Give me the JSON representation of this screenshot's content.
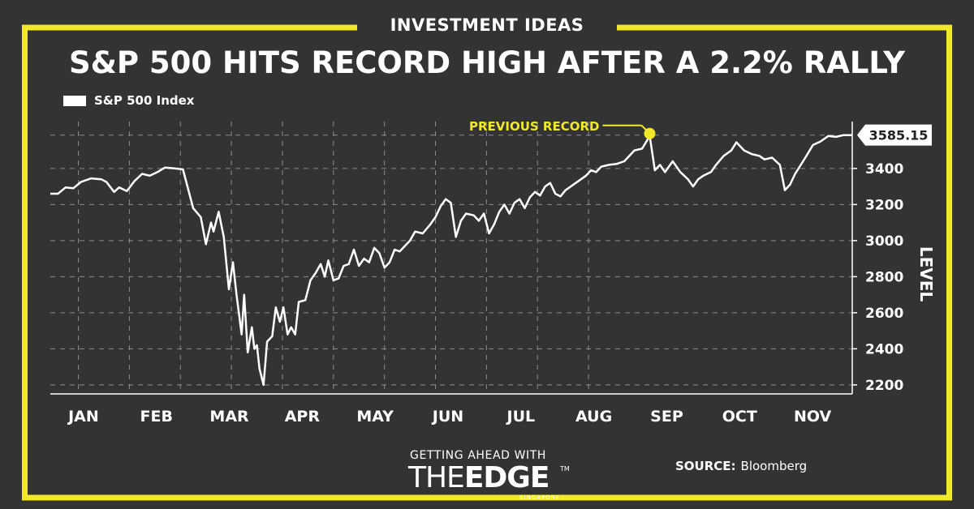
{
  "header": {
    "section_label": "INVESTMENT IDEAS",
    "headline": "S&P 500 HITS RECORD HIGH AFTER A 2.2% RALLY"
  },
  "colors": {
    "background": "#333333",
    "frame": "#f2e82a",
    "line": "#ffffff",
    "highlight": "#f2e82a",
    "grid": "#8c8c8c"
  },
  "footer": {
    "source_label": "SOURCE:",
    "source_value": "Bloomberg",
    "brand_tagline": "GETTING AHEAD WITH",
    "brand_the": "THE",
    "brand_edge": "EDGE",
    "brand_tm": "TM",
    "brand_sub": "SINGAPORE"
  },
  "chart_data": {
    "type": "line",
    "xlabel": "",
    "ylabel": "LEVEL",
    "ylim": [
      2150,
      3660
    ],
    "yticks": [
      2200,
      2400,
      2600,
      2800,
      3000,
      3200,
      3400
    ],
    "month_labels": [
      "JAN",
      "FEB",
      "MAR",
      "APR",
      "MAY",
      "JUN",
      "JUL",
      "AUG",
      "SEP",
      "OCT",
      "NOV"
    ],
    "grid": true,
    "legend_position": "top-left",
    "series": [
      {
        "name": "S&P 500 Index",
        "points": [
          [
            0.0,
            3260
          ],
          [
            0.15,
            3260
          ],
          [
            0.3,
            3295
          ],
          [
            0.45,
            3290
          ],
          [
            0.6,
            3325
          ],
          [
            0.8,
            3345
          ],
          [
            1.0,
            3340
          ],
          [
            1.1,
            3325
          ],
          [
            1.25,
            3270
          ],
          [
            1.35,
            3295
          ],
          [
            1.5,
            3275
          ],
          [
            1.65,
            3330
          ],
          [
            1.8,
            3370
          ],
          [
            1.95,
            3360
          ],
          [
            2.1,
            3380
          ],
          [
            2.25,
            3405
          ],
          [
            2.45,
            3400
          ],
          [
            2.6,
            3395
          ],
          [
            2.8,
            3180
          ],
          [
            2.95,
            3130
          ],
          [
            3.05,
            2980
          ],
          [
            3.15,
            3100
          ],
          [
            3.2,
            3050
          ],
          [
            3.3,
            3160
          ],
          [
            3.4,
            3020
          ],
          [
            3.5,
            2730
          ],
          [
            3.58,
            2880
          ],
          [
            3.65,
            2700
          ],
          [
            3.75,
            2480
          ],
          [
            3.8,
            2700
          ],
          [
            3.87,
            2380
          ],
          [
            3.95,
            2520
          ],
          [
            4.0,
            2400
          ],
          [
            4.05,
            2420
          ],
          [
            4.1,
            2290
          ],
          [
            4.18,
            2200
          ],
          [
            4.25,
            2440
          ],
          [
            4.35,
            2470
          ],
          [
            4.42,
            2630
          ],
          [
            4.5,
            2550
          ],
          [
            4.57,
            2630
          ],
          [
            4.65,
            2480
          ],
          [
            4.72,
            2520
          ],
          [
            4.8,
            2480
          ],
          [
            4.87,
            2660
          ],
          [
            5.0,
            2670
          ],
          [
            5.1,
            2780
          ],
          [
            5.2,
            2820
          ],
          [
            5.3,
            2870
          ],
          [
            5.38,
            2800
          ],
          [
            5.45,
            2890
          ],
          [
            5.55,
            2780
          ],
          [
            5.65,
            2790
          ],
          [
            5.75,
            2860
          ],
          [
            5.85,
            2870
          ],
          [
            5.95,
            2950
          ],
          [
            6.05,
            2860
          ],
          [
            6.15,
            2900
          ],
          [
            6.25,
            2880
          ],
          [
            6.35,
            2960
          ],
          [
            6.45,
            2930
          ],
          [
            6.55,
            2850
          ],
          [
            6.65,
            2880
          ],
          [
            6.75,
            2950
          ],
          [
            6.85,
            2940
          ],
          [
            6.95,
            2970
          ],
          [
            7.05,
            3000
          ],
          [
            7.15,
            3050
          ],
          [
            7.3,
            3040
          ],
          [
            7.45,
            3090
          ],
          [
            7.55,
            3130
          ],
          [
            7.65,
            3190
          ],
          [
            7.75,
            3230
          ],
          [
            7.85,
            3210
          ],
          [
            7.95,
            3020
          ],
          [
            8.05,
            3110
          ],
          [
            8.15,
            3150
          ],
          [
            8.3,
            3140
          ],
          [
            8.4,
            3110
          ],
          [
            8.5,
            3150
          ],
          [
            8.6,
            3040
          ],
          [
            8.7,
            3090
          ],
          [
            8.8,
            3160
          ],
          [
            8.9,
            3200
          ],
          [
            9.0,
            3150
          ],
          [
            9.1,
            3210
          ],
          [
            9.2,
            3230
          ],
          [
            9.3,
            3180
          ],
          [
            9.4,
            3240
          ],
          [
            9.5,
            3270
          ],
          [
            9.6,
            3250
          ],
          [
            9.7,
            3300
          ],
          [
            9.8,
            3320
          ],
          [
            9.9,
            3260
          ],
          [
            10.0,
            3245
          ],
          [
            10.1,
            3280
          ],
          [
            10.3,
            3320
          ],
          [
            10.5,
            3360
          ],
          [
            10.6,
            3390
          ],
          [
            10.7,
            3380
          ],
          [
            10.8,
            3410
          ],
          [
            10.95,
            3420
          ],
          [
            11.1,
            3425
          ],
          [
            11.25,
            3440
          ],
          [
            11.45,
            3500
          ],
          [
            11.6,
            3510
          ],
          [
            11.75,
            3580
          ],
          [
            11.85,
            3390
          ],
          [
            11.95,
            3420
          ],
          [
            12.05,
            3380
          ],
          [
            12.2,
            3440
          ],
          [
            12.35,
            3380
          ],
          [
            12.5,
            3340
          ],
          [
            12.6,
            3300
          ],
          [
            12.7,
            3340
          ],
          [
            12.8,
            3360
          ],
          [
            12.95,
            3380
          ],
          [
            13.05,
            3420
          ],
          [
            13.2,
            3470
          ],
          [
            13.35,
            3500
          ],
          [
            13.45,
            3545
          ],
          [
            13.6,
            3500
          ],
          [
            13.75,
            3480
          ],
          [
            13.9,
            3470
          ],
          [
            14.0,
            3450
          ],
          [
            14.15,
            3460
          ],
          [
            14.3,
            3420
          ],
          [
            14.4,
            3280
          ],
          [
            14.5,
            3310
          ],
          [
            14.6,
            3370
          ],
          [
            14.8,
            3460
          ],
          [
            14.95,
            3530
          ],
          [
            15.1,
            3550
          ],
          [
            15.25,
            3580
          ],
          [
            15.4,
            3575
          ],
          [
            15.55,
            3585
          ],
          [
            15.72,
            3585
          ]
        ]
      }
    ],
    "annotations": [
      {
        "text": "PREVIOUS RECORD",
        "x": 11.75,
        "y": 3580
      },
      {
        "text": "3585.15",
        "x": 15.72,
        "y": 3585.15
      }
    ],
    "last_value": "3585.15"
  }
}
